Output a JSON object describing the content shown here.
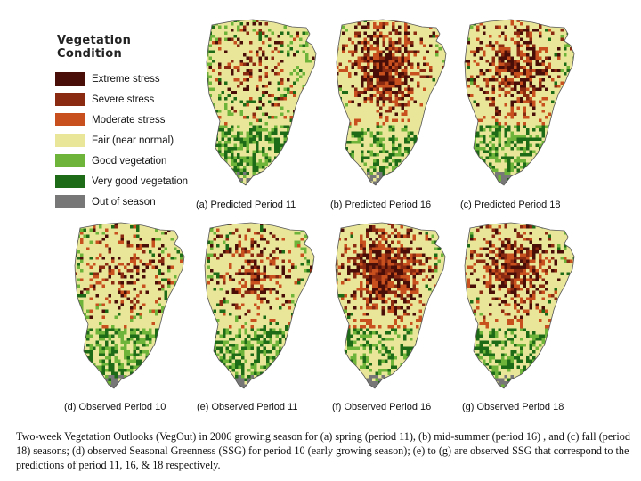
{
  "legend": {
    "title": "Vegetation Condition",
    "items": [
      {
        "label": "Extreme stress",
        "color": "#4a0e08",
        "icon": "swatch-extreme-stress"
      },
      {
        "label": "Severe stress",
        "color": "#8a2a10",
        "icon": "swatch-severe-stress"
      },
      {
        "label": "Moderate stress",
        "color": "#c8501e",
        "icon": "swatch-moderate-stress"
      },
      {
        "label": "Fair (near normal)",
        "color": "#e9e69a",
        "icon": "swatch-fair"
      },
      {
        "label": "Good vegetation",
        "color": "#6fb43a",
        "icon": "swatch-good"
      },
      {
        "label": "Very good vegetation",
        "color": "#1d6b16",
        "icon": "swatch-very-good"
      },
      {
        "label": "Out of season",
        "color": "#777777",
        "icon": "swatch-out-of-season"
      }
    ]
  },
  "maps": [
    {
      "id": "a",
      "caption": "(a) Predicted Period 11",
      "stress_level": 0.3
    },
    {
      "id": "b",
      "caption": "(b) Predicted Period 16",
      "stress_level": 0.9
    },
    {
      "id": "c",
      "caption": "(c) Predicted Period 18",
      "stress_level": 0.75
    },
    {
      "id": "d",
      "caption": "(d) Observed Period 10",
      "stress_level": 0.4
    },
    {
      "id": "e",
      "caption": "(e) Observed Period 11",
      "stress_level": 0.45
    },
    {
      "id": "f",
      "caption": "(f) Observed Period 16",
      "stress_level": 0.95
    },
    {
      "id": "g",
      "caption": "(g) Observed Period 18",
      "stress_level": 0.8
    }
  ],
  "figure_caption": "Two-week Vegetation Outlooks (VegOut) in 2006 growing season for (a) spring (period 11), (b) mid-summer (period 16) , and (c) fall (period 18) seasons; (d) observed Seasonal Greenness (SSG) for period 10 (early growing season); (e) to (g) are observed SSG that correspond to the predictions of period 11, 16, & 18 respectively."
}
